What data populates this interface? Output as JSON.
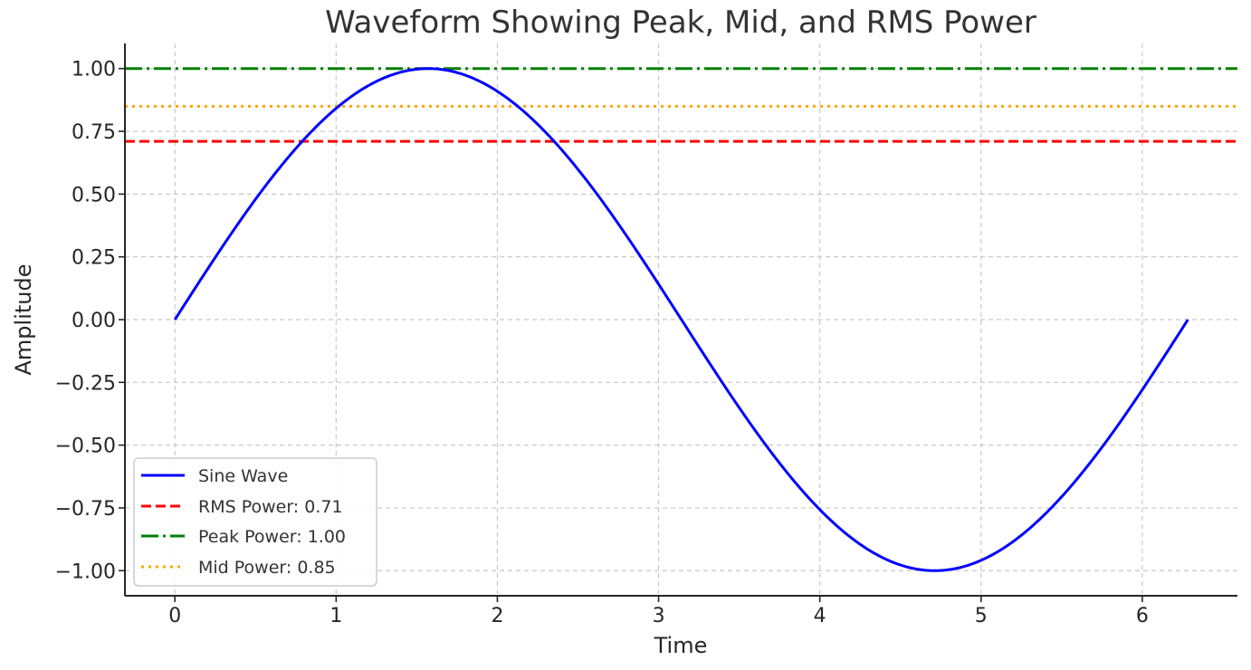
{
  "chart_data": {
    "type": "line",
    "title": "Waveform Showing Peak, Mid, and RMS Power",
    "xlabel": "Time",
    "ylabel": "Amplitude",
    "xlim": [
      -0.31,
      6.59
    ],
    "ylim": [
      -1.1,
      1.1
    ],
    "x_ticks": [
      0,
      1,
      2,
      3,
      4,
      5,
      6
    ],
    "x_tick_labels": [
      "0",
      "1",
      "2",
      "3",
      "4",
      "5",
      "6"
    ],
    "y_ticks": [
      1.0,
      0.75,
      0.5,
      0.25,
      0.0,
      -0.25,
      -0.5,
      -0.75,
      -1.0
    ],
    "y_tick_labels": [
      "1.00",
      "0.75",
      "0.50",
      "0.25",
      "0.00",
      "−0.25",
      "−0.50",
      "−0.75",
      "−1.00"
    ],
    "grid": true,
    "legend_position": "lower-left",
    "series": [
      {
        "name": "Sine Wave",
        "kind": "curve",
        "function": "sin(x)",
        "x_range": [
          0,
          6.283185
        ],
        "color": "#0000ff",
        "dash": "solid",
        "samples": [
          {
            "x": 0.0,
            "y": 0.0
          },
          {
            "x": 0.785,
            "y": 0.707
          },
          {
            "x": 1.571,
            "y": 1.0
          },
          {
            "x": 2.356,
            "y": 0.707
          },
          {
            "x": 3.142,
            "y": 0.0
          },
          {
            "x": 3.927,
            "y": -0.707
          },
          {
            "x": 4.712,
            "y": -1.0
          },
          {
            "x": 5.498,
            "y": -0.707
          },
          {
            "x": 6.283,
            "y": 0.0
          }
        ]
      },
      {
        "name": "RMS Power: 0.71",
        "kind": "hline",
        "value": 0.71,
        "color": "#ff0000",
        "dash": "dashed"
      },
      {
        "name": "Peak Power: 1.00",
        "kind": "hline",
        "value": 1.0,
        "color": "#008000",
        "dash": "dashdot"
      },
      {
        "name": "Mid Power: 0.85",
        "kind": "hline",
        "value": 0.85,
        "color": "#ffa500",
        "dash": "dotted"
      }
    ]
  }
}
